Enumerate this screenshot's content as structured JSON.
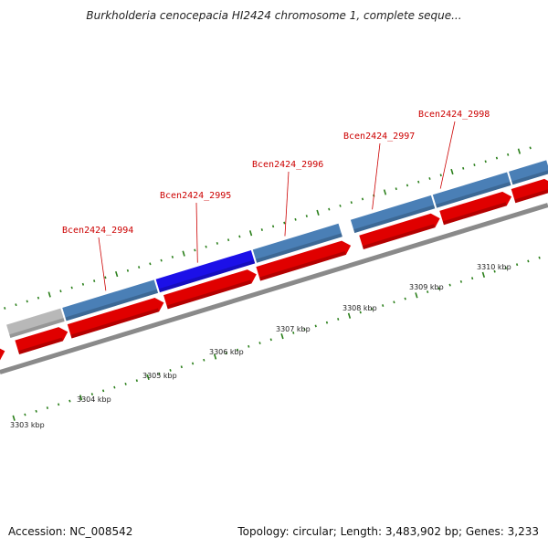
{
  "header": {
    "title": "Burkholderia cenocepacia HI2424 chromosome 1, complete seque..."
  },
  "footer": {
    "accession": "Accession: NC_008542",
    "summary": "Topology: circular; Length: 3,483,902 bp; Genes: 3,233"
  },
  "colors": {
    "gene_default": "#4a7fb6",
    "gene_selected": "#1c10e8",
    "gene_pseudo": "#b8b8b8",
    "cds": "#e00000",
    "backbone": "#8a8a8a",
    "tick": "#2a7f1a",
    "gene_label": "#cc0000"
  },
  "genes": [
    {
      "label": "",
      "type": "pseudo"
    },
    {
      "label": "Bcen2424_2994",
      "type": "default"
    },
    {
      "label": "Bcen2424_2995",
      "type": "selected"
    },
    {
      "label": "Bcen2424_2996",
      "type": "default"
    },
    {
      "label": "Bcen2424_2997",
      "type": "default"
    },
    {
      "label": "Bcen2424_2998",
      "type": "default"
    },
    {
      "label": "",
      "type": "default"
    }
  ],
  "kbp_labels": [
    "3303 kbp",
    "3304 kbp",
    "3305 kbp",
    "3306 kbp",
    "3307 kbp",
    "3308 kbp",
    "3309 kbp",
    "3310 kbp"
  ]
}
